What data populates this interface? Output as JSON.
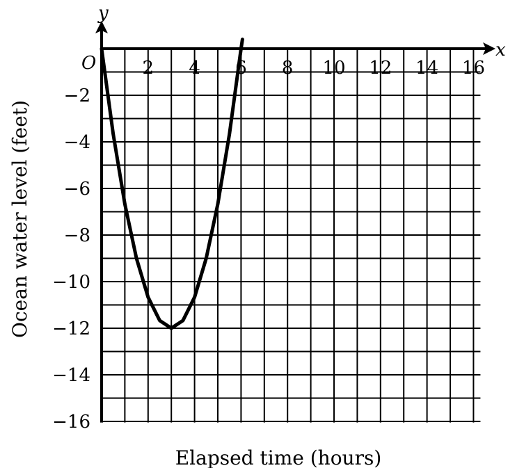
{
  "chart_data": {
    "type": "line",
    "title": "",
    "xlabel": "Elapsed time (hours)",
    "ylabel": "Ocean water level (feet)",
    "x_axis_letter": "x",
    "y_axis_letter": "y",
    "origin_label": "O",
    "xlim": [
      0,
      16
    ],
    "ylim": [
      -16,
      0
    ],
    "grid": true,
    "x_ticks": [
      {
        "value": 2,
        "label": "2"
      },
      {
        "value": 4,
        "label": "4"
      },
      {
        "value": 6,
        "label": "6"
      },
      {
        "value": 8,
        "label": "8"
      },
      {
        "value": 10,
        "label": "10"
      },
      {
        "value": 12,
        "label": "12"
      },
      {
        "value": 14,
        "label": "14"
      },
      {
        "value": 16,
        "label": "16"
      }
    ],
    "y_ticks": [
      {
        "value": -2,
        "label": "−2"
      },
      {
        "value": -4,
        "label": "−4"
      },
      {
        "value": -6,
        "label": "−6"
      },
      {
        "value": -8,
        "label": "−8"
      },
      {
        "value": -10,
        "label": "−10"
      },
      {
        "value": -12,
        "label": "−12"
      },
      {
        "value": -14,
        "label": "−14"
      },
      {
        "value": -16,
        "label": "−16"
      }
    ],
    "series": [
      {
        "x": [
          0,
          0.5,
          1,
          1.5,
          2,
          2.5,
          3,
          3.5,
          4,
          4.5,
          5,
          5.5,
          6,
          6.06
        ],
        "y": [
          0,
          -3.67,
          -6.67,
          -9,
          -10.67,
          -11.67,
          -12,
          -11.67,
          -10.67,
          -9,
          -6.67,
          -3.67,
          0,
          0.4
        ],
        "color": "#000000"
      }
    ]
  }
}
